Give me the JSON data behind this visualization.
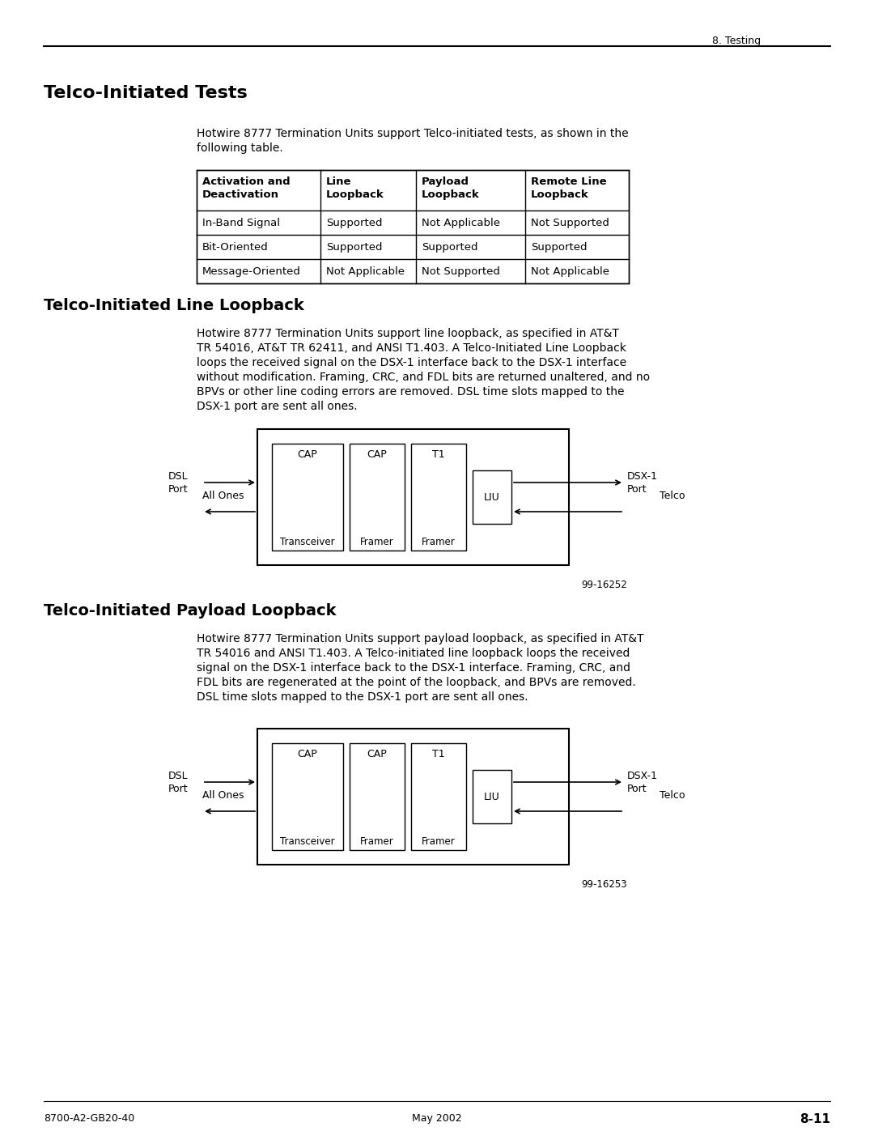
{
  "page_header": "8. Testing",
  "section1_title": "Telco-Initiated Tests",
  "section1_body_line1": "Hotwire 8777 Termination Units support Telco-initiated tests, as shown in the",
  "section1_body_line2": "following table.",
  "table_headers": [
    [
      "Activation and",
      "Deactivation"
    ],
    [
      "Line",
      "Loopback"
    ],
    [
      "Payload",
      "Loopback"
    ],
    [
      "Remote Line",
      "Loopback"
    ]
  ],
  "table_rows": [
    [
      "In-Band Signal",
      "Supported",
      "Not Applicable",
      "Not Supported"
    ],
    [
      "Bit-Oriented",
      "Supported",
      "Supported",
      "Supported"
    ],
    [
      "Message-Oriented",
      "Not Applicable",
      "Not Supported",
      "Not Applicable"
    ]
  ],
  "section2_title": "Telco-Initiated Line Loopback",
  "section2_body": [
    "Hotwire 8777 Termination Units support line loopback, as specified in AT&T",
    "TR 54016, AT&T TR 62411, and ANSI T1.403. A Telco-Initiated Line Loopback",
    "loops the received signal on the DSX-1 interface back to the DSX-1 interface",
    "without modification. Framing, CRC, and FDL bits are returned unaltered, and no",
    "BPVs or other line coding errors are removed. DSL time slots mapped to the",
    "DSX-1 port are sent all ones."
  ],
  "diagram1_label": "99-16252",
  "section3_title": "Telco-Initiated Payload Loopback",
  "section3_body": [
    "Hotwire 8777 Termination Units support payload loopback, as specified in AT&T",
    "TR 54016 and ANSI T1.403. A Telco-initiated line loopback loops the received",
    "signal on the DSX-1 interface back to the DSX-1 interface. Framing, CRC, and",
    "FDL bits are regenerated at the point of the loopback, and BPVs are removed.",
    "DSL time slots mapped to the DSX-1 port are sent all ones."
  ],
  "diagram2_label": "99-16253",
  "footer_left": "8700-A2-GB20-40",
  "footer_center": "May 2002",
  "footer_right": "8-11",
  "bg_color": "#ffffff"
}
